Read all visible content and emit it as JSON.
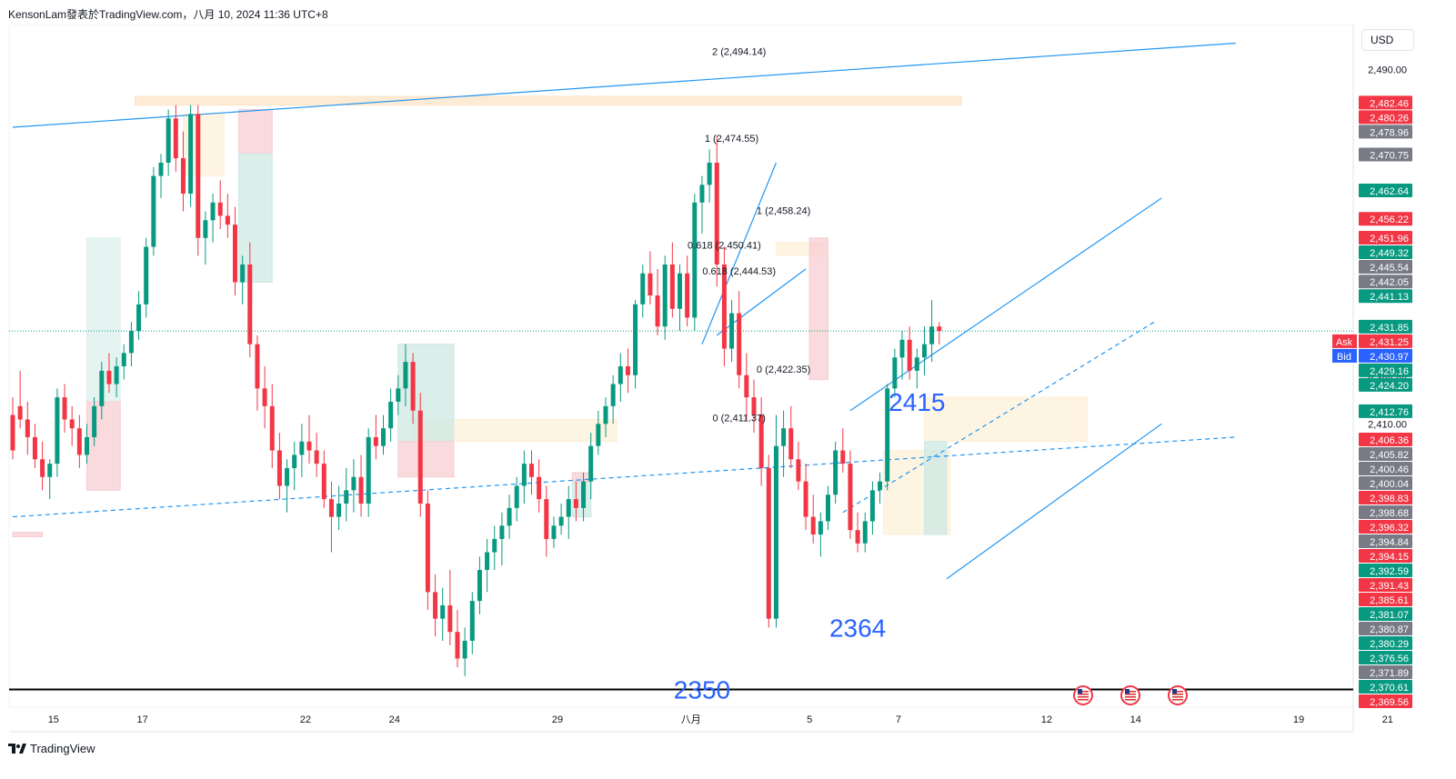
{
  "header": {
    "title": "KensonLam發表於TradingView.com，八月 10, 2024 11:36 UTC+8"
  },
  "footer": {
    "brand": "TradingView"
  },
  "currency": "USD",
  "colors": {
    "up": "#089981",
    "down": "#f23645",
    "trend": "#2196f3",
    "label_big": "#2962ff",
    "axis_text": "#131722",
    "price_dotted": "#089981"
  },
  "chart_data": {
    "type": "candlestick",
    "ylim": [
      2346,
      2500
    ],
    "y_ticks": [
      "2,490.00",
      "2,420.00",
      "2,410.00"
    ],
    "x_ticks": [
      {
        "label": "15",
        "i": 5.5
      },
      {
        "label": "17",
        "i": 17.5
      },
      {
        "label": "22",
        "i": 39.5
      },
      {
        "label": "24",
        "i": 51.5
      },
      {
        "label": "29",
        "i": 73.5
      },
      {
        "label": "八月",
        "i": 91.5
      },
      {
        "label": "5",
        "i": 107.5
      },
      {
        "label": "7",
        "i": 119.5
      },
      {
        "label": "12",
        "i": 139.5
      },
      {
        "label": "14",
        "i": 151.5
      },
      {
        "label": "19",
        "i": 173.5
      },
      {
        "label": "21",
        "i": 185.5
      }
    ],
    "candles": [
      [
        2412,
        2416,
        2402,
        2404
      ],
      [
        2414,
        2422,
        2409,
        2411
      ],
      [
        2411,
        2415,
        2403,
        2407
      ],
      [
        2407,
        2410,
        2400,
        2402
      ],
      [
        2402,
        2406,
        2395,
        2398
      ],
      [
        2398,
        2402,
        2393,
        2401
      ],
      [
        2401,
        2418,
        2398,
        2416
      ],
      [
        2416,
        2419,
        2408,
        2411
      ],
      [
        2411,
        2414,
        2405,
        2409
      ],
      [
        2409,
        2412,
        2400,
        2403
      ],
      [
        2403,
        2410,
        2401,
        2407
      ],
      [
        2407,
        2416,
        2405,
        2414
      ],
      [
        2414,
        2424,
        2411,
        2422
      ],
      [
        2422,
        2426,
        2417,
        2419
      ],
      [
        2419,
        2425,
        2416,
        2423
      ],
      [
        2423,
        2428,
        2420,
        2426
      ],
      [
        2426,
        2433,
        2423,
        2431
      ],
      [
        2431,
        2440,
        2429,
        2437
      ],
      [
        2437,
        2452,
        2434,
        2450
      ],
      [
        2450,
        2468,
        2448,
        2466
      ],
      [
        2466,
        2471,
        2461,
        2469
      ],
      [
        2469,
        2481,
        2466,
        2479
      ],
      [
        2479,
        2482,
        2467,
        2470
      ],
      [
        2470,
        2476,
        2458,
        2462
      ],
      [
        2462,
        2482,
        2459,
        2480
      ],
      [
        2480,
        2482,
        2448,
        2452
      ],
      [
        2452,
        2458,
        2446,
        2456
      ],
      [
        2456,
        2462,
        2451,
        2460
      ],
      [
        2460,
        2465,
        2454,
        2457
      ],
      [
        2457,
        2462,
        2452,
        2455
      ],
      [
        2455,
        2459,
        2439,
        2442
      ],
      [
        2442,
        2448,
        2437,
        2446
      ],
      [
        2446,
        2451,
        2425,
        2428
      ],
      [
        2428,
        2430,
        2413,
        2418
      ],
      [
        2418,
        2423,
        2409,
        2414
      ],
      [
        2414,
        2419,
        2400,
        2404
      ],
      [
        2404,
        2408,
        2393,
        2396
      ],
      [
        2396,
        2402,
        2390,
        2400
      ],
      [
        2400,
        2406,
        2395,
        2403
      ],
      [
        2403,
        2410,
        2398,
        2406
      ],
      [
        2406,
        2412,
        2401,
        2404
      ],
      [
        2404,
        2408,
        2398,
        2401
      ],
      [
        2401,
        2404,
        2391,
        2393
      ],
      [
        2393,
        2397,
        2381,
        2389
      ],
      [
        2389,
        2396,
        2386,
        2392
      ],
      [
        2392,
        2400,
        2388,
        2395
      ],
      [
        2395,
        2402,
        2390,
        2398
      ],
      [
        2398,
        2403,
        2389,
        2392
      ],
      [
        2392,
        2409,
        2389,
        2407
      ],
      [
        2407,
        2412,
        2402,
        2405
      ],
      [
        2405,
        2412,
        2403,
        2409
      ],
      [
        2409,
        2418,
        2406,
        2415
      ],
      [
        2415,
        2421,
        2412,
        2418
      ],
      [
        2418,
        2428,
        2414,
        2424
      ],
      [
        2424,
        2426,
        2410,
        2413
      ],
      [
        2413,
        2417,
        2389,
        2392
      ],
      [
        2392,
        2395,
        2368,
        2372
      ],
      [
        2372,
        2376,
        2362,
        2366
      ],
      [
        2366,
        2373,
        2361,
        2369
      ],
      [
        2369,
        2377,
        2360,
        2363
      ],
      [
        2363,
        2368,
        2355,
        2357
      ],
      [
        2357,
        2364,
        2353,
        2361
      ],
      [
        2361,
        2372,
        2358,
        2370
      ],
      [
        2370,
        2380,
        2367,
        2377
      ],
      [
        2377,
        2384,
        2372,
        2381
      ],
      [
        2381,
        2387,
        2377,
        2384
      ],
      [
        2384,
        2390,
        2378,
        2387
      ],
      [
        2387,
        2394,
        2384,
        2391
      ],
      [
        2391,
        2398,
        2388,
        2396
      ],
      [
        2396,
        2404,
        2392,
        2401
      ],
      [
        2401,
        2404,
        2394,
        2398
      ],
      [
        2398,
        2402,
        2390,
        2393
      ],
      [
        2393,
        2396,
        2380,
        2384
      ],
      [
        2384,
        2389,
        2382,
        2387
      ],
      [
        2387,
        2392,
        2385,
        2389
      ],
      [
        2389,
        2396,
        2384,
        2393
      ],
      [
        2393,
        2397,
        2388,
        2391
      ],
      [
        2391,
        2399,
        2388,
        2397
      ],
      [
        2397,
        2408,
        2393,
        2405
      ],
      [
        2405,
        2413,
        2403,
        2410
      ],
      [
        2410,
        2416,
        2407,
        2414
      ],
      [
        2414,
        2421,
        2410,
        2419
      ],
      [
        2419,
        2426,
        2415,
        2423
      ],
      [
        2423,
        2427,
        2417,
        2421
      ],
      [
        2421,
        2438,
        2418,
        2437
      ],
      [
        2437,
        2446,
        2434,
        2444
      ],
      [
        2444,
        2449,
        2437,
        2439
      ],
      [
        2439,
        2445,
        2430,
        2432
      ],
      [
        2432,
        2448,
        2429,
        2446
      ],
      [
        2446,
        2451,
        2434,
        2436
      ],
      [
        2436,
        2446,
        2431,
        2444
      ],
      [
        2444,
        2448,
        2432,
        2434
      ],
      [
        2434,
        2462,
        2431,
        2460
      ],
      [
        2460,
        2466,
        2453,
        2464
      ],
      [
        2464,
        2472,
        2460,
        2469
      ],
      [
        2469,
        2475,
        2441,
        2446
      ],
      [
        2446,
        2450,
        2423,
        2427
      ],
      [
        2427,
        2438,
        2424,
        2435
      ],
      [
        2435,
        2440,
        2418,
        2421
      ],
      [
        2421,
        2426,
        2411,
        2416
      ],
      [
        2416,
        2420,
        2408,
        2412
      ],
      [
        2412,
        2416,
        2396,
        2400
      ],
      [
        2400,
        2403,
        2364,
        2366
      ],
      [
        2366,
        2412,
        2364,
        2405
      ],
      [
        2405,
        2413,
        2398,
        2409
      ],
      [
        2409,
        2414,
        2400,
        2402
      ],
      [
        2402,
        2406,
        2395,
        2397
      ],
      [
        2397,
        2401,
        2386,
        2389
      ],
      [
        2389,
        2394,
        2383,
        2385
      ],
      [
        2385,
        2390,
        2380,
        2388
      ],
      [
        2388,
        2396,
        2386,
        2394
      ],
      [
        2394,
        2406,
        2392,
        2404
      ],
      [
        2404,
        2409,
        2399,
        2401
      ],
      [
        2401,
        2404,
        2384,
        2386
      ],
      [
        2386,
        2390,
        2381,
        2383
      ],
      [
        2383,
        2390,
        2381,
        2388
      ],
      [
        2388,
        2397,
        2385,
        2395
      ],
      [
        2395,
        2399,
        2392,
        2397
      ],
      [
        2397,
        2419,
        2395,
        2418
      ],
      [
        2418,
        2427,
        2416,
        2425
      ],
      [
        2425,
        2431,
        2420,
        2429
      ],
      [
        2429,
        2432,
        2420,
        2422
      ],
      [
        2422,
        2427,
        2418,
        2425
      ],
      [
        2425,
        2432,
        2421,
        2428
      ],
      [
        2428,
        2438,
        2424,
        2432
      ],
      [
        2432,
        2433,
        2428,
        2431
      ]
    ],
    "price_labels": [
      {
        "text": "2,482.46",
        "v": 2482.46,
        "color": "#f23645"
      },
      {
        "text": "2,480.26",
        "v": 2480.26,
        "color": "#f23645"
      },
      {
        "text": "2,478.96",
        "v": 2478.96,
        "color": "#787b86"
      },
      {
        "text": "2,470.75",
        "v": 2470.75,
        "color": "#787b86"
      },
      {
        "text": "2,462.64",
        "v": 2462.64,
        "color": "#089981"
      },
      {
        "text": "2,456.22",
        "v": 2456.22,
        "color": "#f23645"
      },
      {
        "text": "2,451.96",
        "v": 2451.96,
        "color": "#f23645"
      },
      {
        "text": "2,449.32",
        "v": 2449.32,
        "color": "#089981"
      },
      {
        "text": "2,445.54",
        "v": 2445.54,
        "color": "#787b86"
      },
      {
        "text": "2,442.05",
        "v": 2442.05,
        "color": "#787b86"
      },
      {
        "text": "2,441.13",
        "v": 2441.13,
        "color": "#089981"
      },
      {
        "text": "2,431.85",
        "v": 2431.85,
        "color": "#089981"
      },
      {
        "text": "2,431.25",
        "v": 2431.25,
        "color": "#f23645"
      },
      {
        "text": "2,430.97",
        "v": 2430.97,
        "color": "#2962ff"
      },
      {
        "text": "2,429.16",
        "v": 2429.16,
        "color": "#089981"
      },
      {
        "text": "2,424.20",
        "v": 2424.2,
        "color": "#089981"
      },
      {
        "text": "2,412.76",
        "v": 2412.76,
        "color": "#089981"
      },
      {
        "text": "2,406.36",
        "v": 2406.36,
        "color": "#f23645"
      },
      {
        "text": "2,405.82",
        "v": 2405.82,
        "color": "#787b86"
      },
      {
        "text": "2,400.46",
        "v": 2400.46,
        "color": "#787b86"
      },
      {
        "text": "2,400.04",
        "v": 2400.04,
        "color": "#787b86"
      },
      {
        "text": "2,398.83",
        "v": 2398.83,
        "color": "#f23645"
      },
      {
        "text": "2,398.68",
        "v": 2398.68,
        "color": "#787b86"
      },
      {
        "text": "2,396.32",
        "v": 2396.32,
        "color": "#f23645"
      },
      {
        "text": "2,394.84",
        "v": 2394.84,
        "color": "#787b86"
      },
      {
        "text": "2,394.15",
        "v": 2394.15,
        "color": "#f23645"
      },
      {
        "text": "2,392.59",
        "v": 2392.59,
        "color": "#089981"
      },
      {
        "text": "2,391.43",
        "v": 2391.43,
        "color": "#f23645"
      },
      {
        "text": "2,385.61",
        "v": 2385.61,
        "color": "#f23645"
      },
      {
        "text": "2,381.07",
        "v": 2381.07,
        "color": "#089981"
      },
      {
        "text": "2,380.87",
        "v": 2380.87,
        "color": "#787b86"
      },
      {
        "text": "2,380.29",
        "v": 2380.29,
        "color": "#089981"
      },
      {
        "text": "2,376.56",
        "v": 2376.56,
        "color": "#089981"
      },
      {
        "text": "2,371.89",
        "v": 2371.89,
        "color": "#787b86"
      },
      {
        "text": "2,370.61",
        "v": 2370.61,
        "color": "#089981"
      },
      {
        "text": "2,369.56",
        "v": 2369.56,
        "color": "#f23645"
      }
    ],
    "ask_label": "Ask",
    "bid_label": "Bid",
    "current_price": 2430.97,
    "fib_labels": [
      {
        "text": "2 (2,494.14)",
        "v": 2494.14,
        "i": 98
      },
      {
        "text": "1 (2,474.55)",
        "v": 2474.55,
        "i": 97
      },
      {
        "text": "1 (2,458.24)",
        "v": 2458.24,
        "i": 104
      },
      {
        "text": "0.618 (2,450.41)",
        "v": 2450.41,
        "i": 96
      },
      {
        "text": "0.618 (2,444.53)",
        "v": 2444.53,
        "i": 98
      },
      {
        "text": "0 (2,422.35)",
        "v": 2422.35,
        "i": 104
      },
      {
        "text": "0 (2,411.37)",
        "v": 2411.37,
        "i": 98
      }
    ],
    "big_labels": [
      {
        "text": "2415",
        "v": 2415,
        "i": 122
      },
      {
        "text": "2364",
        "v": 2364,
        "i": 114
      },
      {
        "text": "2350",
        "v": 2350,
        "i": 93
      }
    ],
    "support_level": 2350,
    "trendlines": [
      {
        "from": [
          0,
          2477
        ],
        "to": [
          165,
          2496
        ],
        "style": "solid"
      },
      {
        "from": [
          0,
          2389
        ],
        "to": [
          165,
          2407
        ],
        "style": "dashed"
      },
      {
        "from": [
          113,
          2413
        ],
        "to": [
          155,
          2461
        ],
        "style": "solid"
      },
      {
        "from": [
          126,
          2375
        ],
        "to": [
          155,
          2410
        ],
        "style": "solid"
      },
      {
        "from": [
          112,
          2390
        ],
        "to": [
          154,
          2433
        ],
        "style": "dashed"
      },
      {
        "from": [
          93,
          2428
        ],
        "to": [
          103,
          2469
        ],
        "style": "solid"
      },
      {
        "from": [
          95,
          2430
        ],
        "to": [
          107,
          2445
        ],
        "style": "solid"
      }
    ],
    "zones": [
      {
        "i0": 16.5,
        "i1": 128,
        "v0": 2484,
        "v1": 2482,
        "color": "#fce4c8"
      },
      {
        "i0": 54,
        "i1": 81.5,
        "v0": 2411,
        "v1": 2406,
        "color": "#fdf0d8"
      },
      {
        "i0": 123,
        "i1": 145,
        "v0": 2416,
        "v1": 2406,
        "color": "#fdf0d8"
      },
      {
        "i0": 117.5,
        "i1": 126.5,
        "v0": 2404,
        "v1": 2385,
        "color": "#fdf0d8"
      },
      {
        "i0": 52,
        "i1": 59.5,
        "v0": 2428,
        "v1": 2406,
        "color": "#cde8e3"
      },
      {
        "i0": 52,
        "i1": 59.5,
        "v0": 2406,
        "v1": 2398,
        "color": "#f7cdd1"
      },
      {
        "i0": 10,
        "i1": 14.5,
        "v0": 2452,
        "v1": 2415,
        "color": "#dcf0ec"
      },
      {
        "i0": 10,
        "i1": 14.5,
        "v0": 2415,
        "v1": 2395,
        "color": "#f7cdd1"
      },
      {
        "i0": 30.5,
        "i1": 35,
        "v0": 2481,
        "v1": 2471,
        "color": "#f7cdd1"
      },
      {
        "i0": 30.5,
        "i1": 35,
        "v0": 2471,
        "v1": 2442,
        "color": "#cde8e3"
      },
      {
        "i0": 23,
        "i1": 28.5,
        "v0": 2480,
        "v1": 2466,
        "color": "#fdf0d8"
      },
      {
        "i0": 75.5,
        "i1": 78,
        "v0": 2397,
        "v1": 2389,
        "color": "#cde8e3"
      },
      {
        "i0": 75.5,
        "i1": 78,
        "v0": 2399,
        "v1": 2397,
        "color": "#f7cdd1"
      },
      {
        "i0": 103,
        "i1": 109.5,
        "v0": 2451,
        "v1": 2448,
        "color": "#fdf0d8"
      },
      {
        "i0": 107.5,
        "i1": 110,
        "v0": 2452,
        "v1": 2420,
        "color": "#f7cdd1"
      },
      {
        "i0": 123,
        "i1": 126,
        "v0": 2406,
        "v1": 2385,
        "color": "#cde8e3"
      },
      {
        "i0": 0,
        "i1": 4,
        "v0": 2385.5,
        "v1": 2384.5,
        "color": "#f7cdd1"
      }
    ]
  }
}
